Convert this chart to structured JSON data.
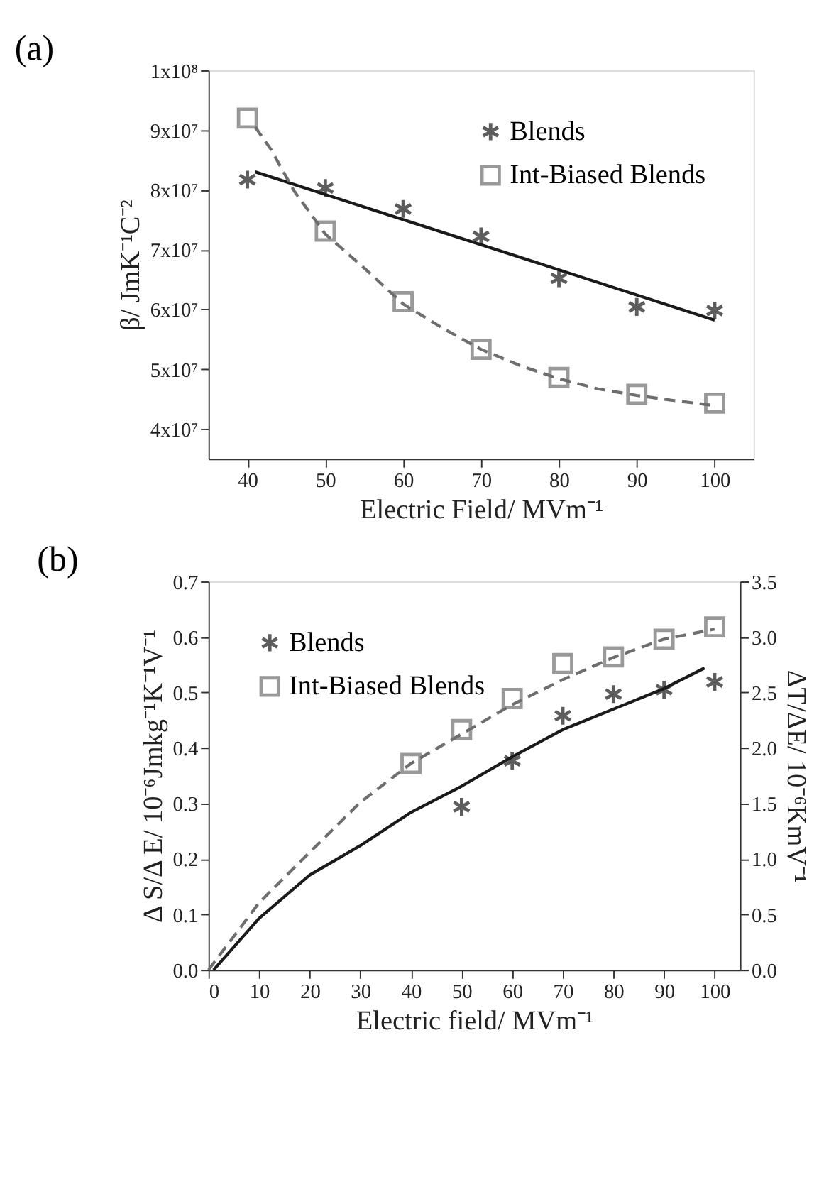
{
  "chart_data": [
    {
      "type": "scatter",
      "title": "(a)",
      "xlabel": "Electric Field/ MVm⁻¹",
      "ylabel": "β/ JmK⁻¹C⁻²",
      "xlim": [
        35,
        105
      ],
      "xticks": [
        40,
        50,
        60,
        70,
        80,
        90,
        100
      ],
      "ylim": [
        35000000,
        100000000
      ],
      "yticks": [
        {
          "value": 40000000,
          "label": "4x10⁷"
        },
        {
          "value": 50000000,
          "label": "5x10⁷"
        },
        {
          "value": 60000000,
          "label": "6x10⁷"
        },
        {
          "value": 70000000,
          "label": "7x10⁷"
        },
        {
          "value": 80000000,
          "label": "8x10⁷"
        },
        {
          "value": 90000000,
          "label": "9x10⁷"
        },
        {
          "value": 100000000,
          "label": "1x10⁸"
        }
      ],
      "grid": false,
      "legend": "top right",
      "series": [
        {
          "name": "Blends",
          "color": "#1a1a1a",
          "marker": "cross",
          "x": [
            40,
            50,
            60,
            70,
            80,
            90,
            100
          ],
          "values": [
            81700000,
            80300000,
            76800000,
            72200000,
            65200000,
            60400000,
            59800000
          ]
        },
        {
          "name": "Int-Biased Blends",
          "color": "#6e6e6e",
          "marker": "square",
          "x": [
            40,
            50,
            60,
            70,
            80,
            90,
            100
          ],
          "values": [
            92000000,
            73100000,
            61300000,
            53300000,
            48600000,
            45800000,
            44300000
          ]
        },
        {
          "type": "line",
          "color": "#1a1a1a",
          "line_style": "solid",
          "x": [
            41,
            100
          ],
          "values": [
            83000000,
            58200000
          ]
        },
        {
          "type": "line",
          "color": "#6e6e6e",
          "line_style": "dashed",
          "x": [
            41,
            43,
            46,
            50,
            55,
            60,
            65,
            70,
            75,
            80,
            85,
            90,
            95,
            100
          ],
          "values": [
            90500000,
            86800000,
            79800000,
            72600000,
            66900000,
            60900000,
            56900000,
            53300000,
            50600000,
            48400000,
            46700000,
            45600000,
            44700000,
            43900000
          ]
        }
      ]
    },
    {
      "type": "scatter",
      "title": "(b)",
      "xlabel": "Electric field/ MVm⁻¹",
      "ylabel": "Δ S/Δ E/ 10⁻⁶Jmkg⁻¹K⁻¹V⁻¹",
      "y2label": "ΔT/ΔE/ 10⁻⁶KmV⁻¹",
      "xlim": [
        0,
        105
      ],
      "xticks": [
        0,
        10,
        20,
        30,
        40,
        50,
        60,
        70,
        80,
        90,
        100
      ],
      "ylim": [
        0,
        0.7
      ],
      "yticks": [
        {
          "value": 0,
          "label": "0.0"
        },
        0.1,
        0.2,
        0.3,
        0.4,
        0.5,
        0.6,
        0.7
      ],
      "y2lim": [
        0,
        3.5
      ],
      "y2ticks": [
        {
          "value": 0,
          "label": "0.0"
        },
        0.5,
        {
          "value": 1,
          "label": "1.0"
        },
        1.5,
        {
          "value": 2,
          "label": "2.0"
        },
        2.5,
        {
          "value": 3,
          "label": "3.0"
        },
        3.5
      ],
      "grid": false,
      "legend": "top left",
      "series": [
        {
          "name": "Blends",
          "color": "#1a1a1a",
          "marker": "cross",
          "x": [
            50,
            60,
            70,
            80,
            90,
            100
          ],
          "values": [
            0.294,
            0.377,
            0.458,
            0.497,
            0.505,
            0.519
          ]
        },
        {
          "name": "Int-Biased Blends",
          "color": "#6e6e6e",
          "marker": "square",
          "x": [
            40,
            50,
            60,
            70,
            80,
            90,
            100
          ],
          "values": [
            0.372,
            0.433,
            0.489,
            0.552,
            0.564,
            0.596,
            0.618
          ]
        },
        {
          "type": "line",
          "color": "#1a1a1a",
          "line_style": "solid",
          "x": [
            1,
            10,
            20,
            30,
            40,
            50,
            60,
            70,
            80,
            90,
            98
          ],
          "values": [
            0,
            0.093,
            0.171,
            0.224,
            0.284,
            0.331,
            0.384,
            0.433,
            0.47,
            0.507,
            0.544
          ]
        },
        {
          "type": "line",
          "color": "#6e6e6e",
          "line_style": "dashed",
          "x": [
            0,
            10,
            20,
            30,
            40,
            50,
            60,
            70,
            80,
            90,
            100
          ],
          "values": [
            0,
            0.121,
            0.212,
            0.302,
            0.372,
            0.425,
            0.478,
            0.523,
            0.563,
            0.596,
            0.614
          ]
        }
      ]
    }
  ]
}
